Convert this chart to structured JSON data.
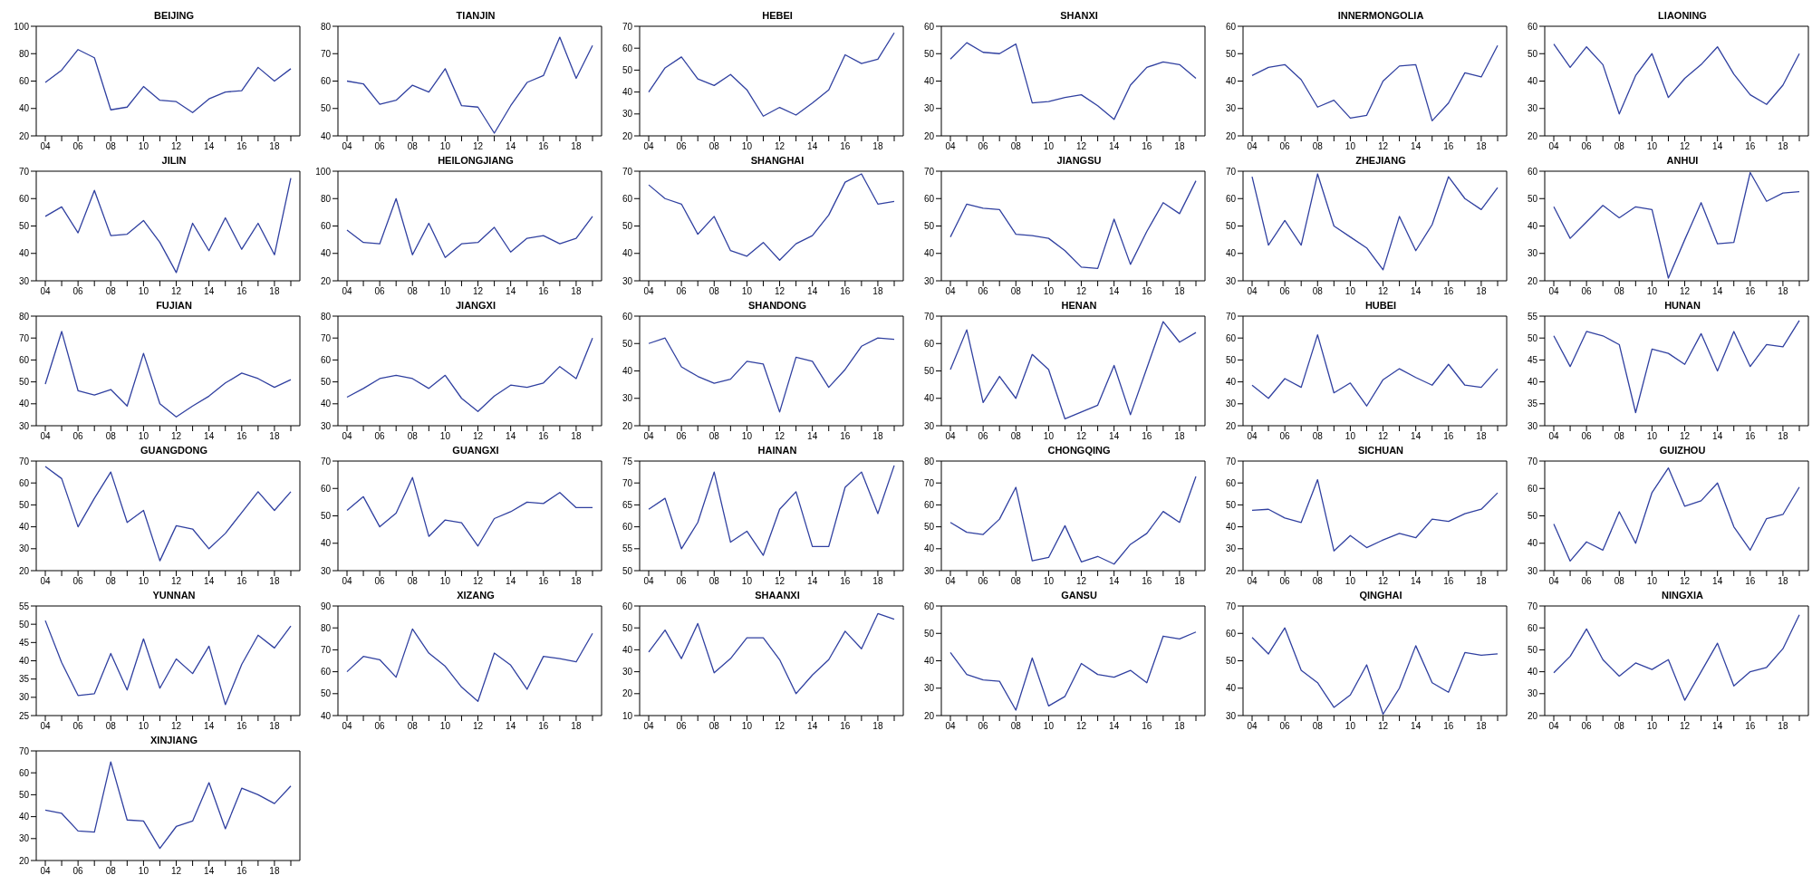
{
  "chart_data": [
    {
      "type": "line",
      "title": "BEIJING",
      "categories": [
        "04",
        null,
        "06",
        null,
        "08",
        null,
        "10",
        null,
        "12",
        null,
        "14",
        null,
        "16",
        null,
        "18",
        null
      ],
      "values": [
        59,
        68,
        83,
        77,
        39,
        41,
        56,
        46,
        45,
        37,
        47,
        52,
        53,
        70,
        60,
        69
      ],
      "color": "#3040a0",
      "ylim": [
        20,
        100
      ],
      "yticks": [
        20,
        40,
        60,
        80,
        100
      ]
    },
    {
      "type": "line",
      "title": "TIANJIN",
      "categories": [
        "04",
        null,
        "06",
        null,
        "08",
        null,
        "10",
        null,
        "12",
        null,
        "14",
        null,
        "16",
        null,
        "18",
        null
      ],
      "values": [
        60,
        59,
        51.5,
        53,
        58.5,
        56,
        64.5,
        51,
        50.5,
        41,
        51,
        59.5,
        62,
        76,
        61,
        73
      ],
      "color": "#3040a0",
      "ylim": [
        40,
        80
      ],
      "yticks": [
        40,
        50,
        60,
        70,
        80
      ]
    },
    {
      "type": "line",
      "title": "HEBEI",
      "categories": [
        "04",
        null,
        "06",
        null,
        "08",
        null,
        "10",
        null,
        "12",
        null,
        "14",
        null,
        "16",
        null,
        "18",
        null
      ],
      "values": [
        40,
        51,
        56,
        46,
        43,
        48,
        41,
        29,
        33,
        29.5,
        35,
        41,
        57,
        53,
        55,
        67
      ],
      "color": "#3040a0",
      "ylim": [
        20,
        70
      ],
      "yticks": [
        20,
        30,
        40,
        50,
        60,
        70
      ]
    },
    {
      "type": "line",
      "title": "SHANXI",
      "categories": [
        "04",
        null,
        "06",
        null,
        "08",
        null,
        "10",
        null,
        "12",
        null,
        "14",
        null,
        "16",
        null,
        "18",
        null
      ],
      "values": [
        48,
        54,
        50.5,
        50,
        53.5,
        32,
        32.5,
        34,
        35,
        31,
        26,
        38.5,
        45,
        47,
        46,
        41
      ],
      "color": "#3040a0",
      "ylim": [
        20,
        60
      ],
      "yticks": [
        20,
        30,
        40,
        50,
        60
      ]
    },
    {
      "type": "line",
      "title": "INNERMONGOLIA",
      "categories": [
        "04",
        null,
        "06",
        null,
        "08",
        null,
        "10",
        null,
        "12",
        null,
        "14",
        null,
        "16",
        null,
        "18",
        null
      ],
      "values": [
        42,
        45,
        46,
        40.5,
        30.5,
        33,
        26.5,
        27.5,
        40,
        45.5,
        46,
        25.5,
        32,
        43,
        41.5,
        53
      ],
      "color": "#3040a0",
      "ylim": [
        20,
        60
      ],
      "yticks": [
        20,
        30,
        40,
        50,
        60
      ]
    },
    {
      "type": "line",
      "title": "LIAONING",
      "categories": [
        "04",
        null,
        "06",
        null,
        "08",
        null,
        "10",
        null,
        "12",
        null,
        "14",
        null,
        "16",
        null,
        "18",
        null
      ],
      "values": [
        53.5,
        45,
        52.5,
        46,
        28,
        42,
        50,
        34,
        41,
        46,
        52.5,
        42.5,
        35,
        31.5,
        38.5,
        50
      ],
      "color": "#3040a0",
      "ylim": [
        20,
        60
      ],
      "yticks": [
        20,
        30,
        40,
        50,
        60
      ]
    },
    {
      "type": "line",
      "title": "JILIN",
      "categories": [
        "04",
        null,
        "06",
        null,
        "08",
        null,
        "10",
        null,
        "12",
        null,
        "14",
        null,
        "16",
        null,
        "18",
        null
      ],
      "values": [
        53.5,
        57,
        47.5,
        63,
        46.5,
        47,
        52,
        44,
        33,
        51,
        41,
        53,
        41.5,
        51,
        39.5,
        67.5
      ],
      "color": "#3040a0",
      "ylim": [
        30,
        70
      ],
      "yticks": [
        30,
        40,
        50,
        60,
        70
      ]
    },
    {
      "type": "line",
      "title": "HEILONGJIANG",
      "categories": [
        "04",
        null,
        "06",
        null,
        "08",
        null,
        "10",
        null,
        "12",
        null,
        "14",
        null,
        "16",
        null,
        "18",
        null
      ],
      "values": [
        57,
        48,
        47,
        80,
        39,
        62,
        37,
        47,
        48,
        59,
        41,
        51,
        53,
        47,
        51,
        67
      ],
      "color": "#3040a0",
      "ylim": [
        20,
        100
      ],
      "yticks": [
        20,
        40,
        60,
        80,
        100
      ]
    },
    {
      "type": "line",
      "title": "SHANGHAI",
      "categories": [
        "04",
        null,
        "06",
        null,
        "08",
        null,
        "10",
        null,
        "12",
        null,
        "14",
        null,
        "16",
        null,
        "18",
        null
      ],
      "values": [
        65,
        60,
        58,
        47,
        53.5,
        41,
        39,
        44,
        37.5,
        43.5,
        46.5,
        54,
        66,
        69,
        58,
        59
      ],
      "color": "#3040a0",
      "ylim": [
        30,
        70
      ],
      "yticks": [
        30,
        40,
        50,
        60,
        70
      ]
    },
    {
      "type": "line",
      "title": "JIANGSU",
      "categories": [
        "04",
        null,
        "06",
        null,
        "08",
        null,
        "10",
        null,
        "12",
        null,
        "14",
        null,
        "16",
        null,
        "18",
        null
      ],
      "values": [
        46,
        58,
        56.5,
        56,
        47,
        46.5,
        45.5,
        41,
        35,
        34.5,
        52.5,
        36,
        48,
        58.5,
        54.5,
        66.5
      ],
      "color": "#3040a0",
      "ylim": [
        30,
        70
      ],
      "yticks": [
        30,
        40,
        50,
        60,
        70
      ]
    },
    {
      "type": "line",
      "title": "ZHEJIANG",
      "categories": [
        "04",
        null,
        "06",
        null,
        "08",
        null,
        "10",
        null,
        "12",
        null,
        "14",
        null,
        "16",
        null,
        "18",
        null
      ],
      "values": [
        68,
        43,
        52,
        43,
        69,
        50,
        46,
        42,
        34,
        53.5,
        41,
        50.5,
        68,
        60,
        56,
        64
      ],
      "color": "#3040a0",
      "ylim": [
        30,
        70
      ],
      "yticks": [
        30,
        40,
        50,
        60,
        70
      ]
    },
    {
      "type": "line",
      "title": "ANHUI",
      "categories": [
        "04",
        null,
        "06",
        null,
        "08",
        null,
        "10",
        null,
        "12",
        null,
        "14",
        null,
        "16",
        null,
        "18",
        null
      ],
      "values": [
        47,
        35.5,
        41.5,
        47.5,
        43,
        47,
        46,
        21,
        35,
        48.5,
        33.5,
        34,
        59.5,
        49,
        52,
        52.5
      ],
      "color": "#3040a0",
      "ylim": [
        20,
        60
      ],
      "yticks": [
        20,
        30,
        40,
        50,
        60
      ]
    },
    {
      "type": "line",
      "title": "FUJIAN",
      "categories": [
        "04",
        null,
        "06",
        null,
        "08",
        null,
        "10",
        null,
        "12",
        null,
        "14",
        null,
        "16",
        null,
        "18",
        null
      ],
      "values": [
        49,
        73,
        46,
        44,
        46.5,
        39,
        63,
        40,
        34,
        39,
        43.5,
        49.5,
        54,
        51.5,
        47.5,
        51
      ],
      "color": "#3040a0",
      "ylim": [
        30,
        80
      ],
      "yticks": [
        30,
        40,
        50,
        60,
        70,
        80
      ]
    },
    {
      "type": "line",
      "title": "JIANGXI",
      "categories": [
        "04",
        null,
        "06",
        null,
        "08",
        null,
        "10",
        null,
        "12",
        null,
        "14",
        null,
        "16",
        null,
        "18",
        null
      ],
      "values": [
        43,
        47,
        51.5,
        53,
        51.5,
        47,
        53,
        42.5,
        36.5,
        43.5,
        48.5,
        47.5,
        49.5,
        57,
        51.5,
        70
      ],
      "color": "#3040a0",
      "ylim": [
        30,
        80
      ],
      "yticks": [
        30,
        40,
        50,
        60,
        70,
        80
      ]
    },
    {
      "type": "line",
      "title": "SHANDONG",
      "categories": [
        "04",
        null,
        "06",
        null,
        "08",
        null,
        "10",
        null,
        "12",
        null,
        "14",
        null,
        "16",
        null,
        "18",
        null
      ],
      "values": [
        50,
        52,
        41.5,
        38,
        35.5,
        37,
        43.5,
        42.5,
        25,
        45,
        43.5,
        34,
        40.5,
        49,
        52,
        51.5
      ],
      "color": "#3040a0",
      "ylim": [
        20,
        60
      ],
      "yticks": [
        20,
        30,
        40,
        50,
        60
      ]
    },
    {
      "type": "line",
      "title": "HENAN",
      "categories": [
        "04",
        null,
        "06",
        null,
        "08",
        null,
        "10",
        null,
        "12",
        null,
        "14",
        null,
        "16",
        null,
        "18",
        null
      ],
      "values": [
        50.5,
        65,
        38.5,
        48,
        40,
        56,
        50.5,
        32.5,
        35,
        37.5,
        52,
        34,
        51,
        68,
        60.5,
        64
      ],
      "color": "#3040a0",
      "ylim": [
        30,
        70
      ],
      "yticks": [
        30,
        40,
        50,
        60,
        70
      ]
    },
    {
      "type": "line",
      "title": "HUBEI",
      "categories": [
        "04",
        null,
        "06",
        null,
        "08",
        null,
        "10",
        null,
        "12",
        null,
        "14",
        null,
        "16",
        null,
        "18",
        null
      ],
      "values": [
        38.5,
        32.5,
        41.5,
        37.5,
        61.5,
        35,
        39.5,
        29,
        41,
        46,
        42,
        38.5,
        48,
        38.5,
        37.5,
        46
      ],
      "color": "#3040a0",
      "ylim": [
        20,
        70
      ],
      "yticks": [
        20,
        30,
        40,
        50,
        60,
        70
      ]
    },
    {
      "type": "line",
      "title": "HUNAN",
      "categories": [
        "04",
        null,
        "06",
        null,
        "08",
        null,
        "10",
        null,
        "12",
        null,
        "14",
        null,
        "16",
        null,
        "18",
        null
      ],
      "values": [
        50.5,
        43.5,
        51.5,
        50.5,
        48.5,
        33,
        47.5,
        46.5,
        44,
        51,
        42.5,
        51.5,
        43.5,
        48.5,
        48,
        54
      ],
      "color": "#3040a0",
      "ylim": [
        30,
        55
      ],
      "yticks": [
        30,
        35,
        40,
        45,
        50,
        55
      ]
    },
    {
      "type": "line",
      "title": "GUANGDONG",
      "categories": [
        "04",
        null,
        "06",
        null,
        "08",
        null,
        "10",
        null,
        "12",
        null,
        "14",
        null,
        "16",
        null,
        "18",
        null
      ],
      "values": [
        67.5,
        62,
        40,
        53,
        65,
        42,
        47.5,
        24.5,
        40.5,
        39,
        30,
        37,
        46.5,
        56,
        47.5,
        56
      ],
      "color": "#3040a0",
      "ylim": [
        20,
        70
      ],
      "yticks": [
        20,
        30,
        40,
        50,
        60,
        70
      ]
    },
    {
      "type": "line",
      "title": "GUANGXI",
      "categories": [
        "04",
        null,
        "06",
        null,
        "08",
        null,
        "10",
        null,
        "12",
        null,
        "14",
        null,
        "16",
        null,
        "18",
        null
      ],
      "values": [
        52,
        57,
        46,
        51,
        64,
        42.5,
        48.5,
        47.5,
        39,
        49,
        51.5,
        55,
        54.5,
        58.5,
        53,
        53
      ],
      "color": "#3040a0",
      "ylim": [
        30,
        70
      ],
      "yticks": [
        30,
        40,
        50,
        60,
        70
      ]
    },
    {
      "type": "line",
      "title": "HAINAN",
      "categories": [
        "04",
        null,
        "06",
        null,
        "08",
        null,
        "10",
        null,
        "12",
        null,
        "14",
        null,
        "16",
        null,
        "18",
        null
      ],
      "values": [
        64,
        66.5,
        55,
        61,
        72.5,
        56.5,
        59,
        53.5,
        64,
        68,
        55.5,
        55.5,
        69,
        72.5,
        63,
        74
      ],
      "color": "#3040a0",
      "ylim": [
        50,
        75
      ],
      "yticks": [
        50,
        55,
        60,
        65,
        70,
        75
      ]
    },
    {
      "type": "line",
      "title": "CHONGQING",
      "categories": [
        "04",
        null,
        "06",
        null,
        "08",
        null,
        "10",
        null,
        "12",
        null,
        "14",
        null,
        "16",
        null,
        "18",
        null
      ],
      "values": [
        52,
        47.5,
        46.5,
        53.5,
        68,
        34.5,
        36,
        50.5,
        34,
        36.5,
        33,
        42,
        47,
        57,
        52,
        73
      ],
      "color": "#3040a0",
      "ylim": [
        30,
        80
      ],
      "yticks": [
        30,
        40,
        50,
        60,
        70,
        80
      ]
    },
    {
      "type": "line",
      "title": "SICHUAN",
      "categories": [
        "04",
        null,
        "06",
        null,
        "08",
        null,
        "10",
        null,
        "12",
        null,
        "14",
        null,
        "16",
        null,
        "18",
        null
      ],
      "values": [
        47.5,
        48,
        44,
        42,
        61.5,
        29,
        36,
        30.5,
        34,
        37,
        35,
        43.5,
        42.5,
        46,
        48,
        55.5
      ],
      "color": "#3040a0",
      "ylim": [
        20,
        70
      ],
      "yticks": [
        20,
        30,
        40,
        50,
        60,
        70
      ]
    },
    {
      "type": "line",
      "title": "GUIZHOU",
      "categories": [
        "04",
        null,
        "06",
        null,
        "08",
        null,
        "10",
        null,
        "12",
        null,
        "14",
        null,
        "16",
        null,
        "18",
        null
      ],
      "values": [
        47,
        33.5,
        40.5,
        37.5,
        51.5,
        40,
        58.5,
        67.5,
        53.5,
        55.5,
        62,
        46,
        37.5,
        49,
        50.5,
        60.5
      ],
      "color": "#3040a0",
      "ylim": [
        30,
        70
      ],
      "yticks": [
        30,
        40,
        50,
        60,
        70
      ]
    },
    {
      "type": "line",
      "title": "YUNNAN",
      "categories": [
        "04",
        null,
        "06",
        null,
        "08",
        null,
        "10",
        null,
        "12",
        null,
        "14",
        null,
        "16",
        null,
        "18",
        null
      ],
      "values": [
        51,
        39.5,
        30.5,
        31,
        42,
        32,
        46,
        32.5,
        40.5,
        36.5,
        44,
        28,
        39,
        47,
        43.5,
        49.5
      ],
      "color": "#3040a0",
      "ylim": [
        25,
        55
      ],
      "yticks": [
        25,
        30,
        35,
        40,
        45,
        50,
        55
      ]
    },
    {
      "type": "line",
      "title": "XIZANG",
      "categories": [
        "04",
        null,
        "06",
        null,
        "08",
        null,
        "10",
        null,
        "12",
        null,
        "14",
        null,
        "16",
        null,
        "18",
        null
      ],
      "values": [
        60,
        67,
        65.5,
        57.5,
        79.5,
        68.5,
        62.5,
        53,
        46.5,
        68.5,
        63,
        52,
        67,
        66,
        64.5,
        77.5
      ],
      "color": "#3040a0",
      "ylim": [
        40,
        90
      ],
      "yticks": [
        40,
        50,
        60,
        70,
        80,
        90
      ]
    },
    {
      "type": "line",
      "title": "SHAANXI",
      "categories": [
        "04",
        null,
        "06",
        null,
        "08",
        null,
        "10",
        null,
        "12",
        null,
        "14",
        null,
        "16",
        null,
        "18",
        null
      ],
      "values": [
        39,
        49,
        36,
        52,
        29.5,
        36,
        45.5,
        45.5,
        35.5,
        20,
        28.5,
        35.5,
        48.5,
        40.5,
        56.5,
        54
      ],
      "color": "#3040a0",
      "ylim": [
        10,
        60
      ],
      "yticks": [
        10,
        20,
        30,
        40,
        50,
        60
      ]
    },
    {
      "type": "line",
      "title": "GANSU",
      "categories": [
        "04",
        null,
        "06",
        null,
        "08",
        null,
        "10",
        null,
        "12",
        null,
        "14",
        null,
        "16",
        null,
        "18",
        null
      ],
      "values": [
        43,
        35,
        33,
        32.5,
        22,
        41,
        23.5,
        27,
        39,
        35,
        34,
        36.5,
        32,
        49,
        48,
        50.5
      ],
      "color": "#3040a0",
      "ylim": [
        20,
        60
      ],
      "yticks": [
        20,
        30,
        40,
        50,
        60
      ]
    },
    {
      "type": "line",
      "title": "QINGHAI",
      "categories": [
        "04",
        null,
        "06",
        null,
        "08",
        null,
        "10",
        null,
        "12",
        null,
        "14",
        null,
        "16",
        null,
        "18",
        null
      ],
      "values": [
        58.5,
        52.5,
        62,
        46.5,
        42,
        33,
        37.5,
        48.5,
        30.5,
        40,
        55.5,
        42,
        38.5,
        53,
        52,
        52.5
      ],
      "color": "#3040a0",
      "ylim": [
        30,
        70
      ],
      "yticks": [
        30,
        40,
        50,
        60,
        70
      ]
    },
    {
      "type": "line",
      "title": "NINGXIA",
      "categories": [
        "04",
        null,
        "06",
        null,
        "08",
        null,
        "10",
        null,
        "12",
        null,
        "14",
        null,
        "16",
        null,
        "18",
        null
      ],
      "values": [
        39.5,
        47,
        59.5,
        45.5,
        38,
        44,
        41,
        45.5,
        27,
        40,
        53,
        33.5,
        40,
        42,
        50.5,
        66
      ],
      "color": "#3040a0",
      "ylim": [
        20,
        70
      ],
      "yticks": [
        20,
        30,
        40,
        50,
        60,
        70
      ]
    },
    {
      "type": "line",
      "title": "XINJIANG",
      "categories": [
        "04",
        null,
        "06",
        null,
        "08",
        null,
        "10",
        null,
        "12",
        null,
        "14",
        null,
        "16",
        null,
        "18",
        null
      ],
      "values": [
        43,
        41.5,
        33.5,
        33,
        65,
        38.5,
        38,
        25.5,
        35.5,
        38,
        55.5,
        34.5,
        53,
        50,
        46,
        54
      ],
      "color": "#3040a0",
      "ylim": [
        20,
        70
      ],
      "yticks": [
        20,
        30,
        40,
        50,
        60,
        70
      ]
    }
  ]
}
